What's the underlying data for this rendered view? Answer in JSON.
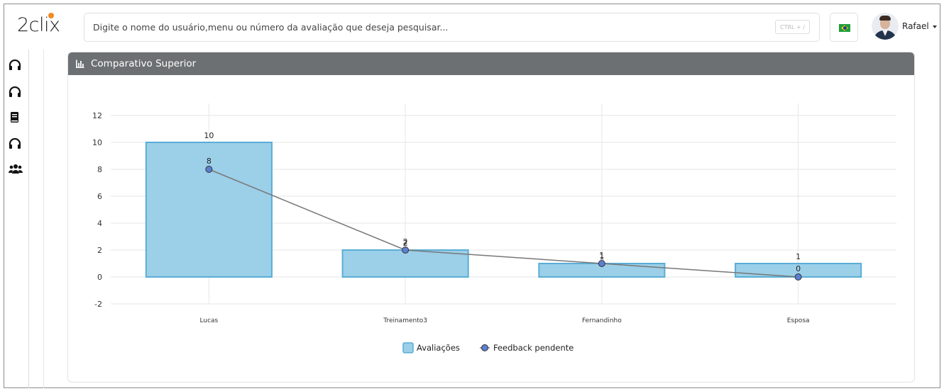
{
  "app": {
    "logo_text": "2clix",
    "search_placeholder": "Digite o nome do usuário,menu ou número da avaliação que deseja pesquisar...",
    "search_shortcut": "CTRL + /",
    "language": "Português (Brasil)",
    "user_name": "Rafael"
  },
  "sidebar": {
    "items": [
      {
        "icon": "headset-icon"
      },
      {
        "icon": "headset-icon"
      },
      {
        "icon": "book-icon"
      },
      {
        "icon": "headset-icon"
      },
      {
        "icon": "users-icon"
      }
    ]
  },
  "panel": {
    "title": "Comparativo Superior",
    "icon": "bar-chart-icon",
    "header_color": "#6c7072"
  },
  "chart_data": {
    "type": "bar",
    "categories": [
      "Lucas",
      "Treinamento3",
      "Fernandinho",
      "Esposa"
    ],
    "series": [
      {
        "name": "Avaliações",
        "type": "bar",
        "values": [
          10,
          2,
          1,
          1
        ],
        "color": "#9ccfe8",
        "stroke": "#5aaed6"
      },
      {
        "name": "Feedback pendente",
        "type": "line",
        "values": [
          8,
          2,
          1,
          0
        ],
        "color": "#5b7fd1",
        "line_color": "#777777"
      }
    ],
    "ylim": [
      -2,
      12
    ],
    "yticks": [
      -2,
      0,
      2,
      4,
      6,
      8,
      10,
      12
    ],
    "grid": true,
    "legend_position": "bottom-center"
  }
}
